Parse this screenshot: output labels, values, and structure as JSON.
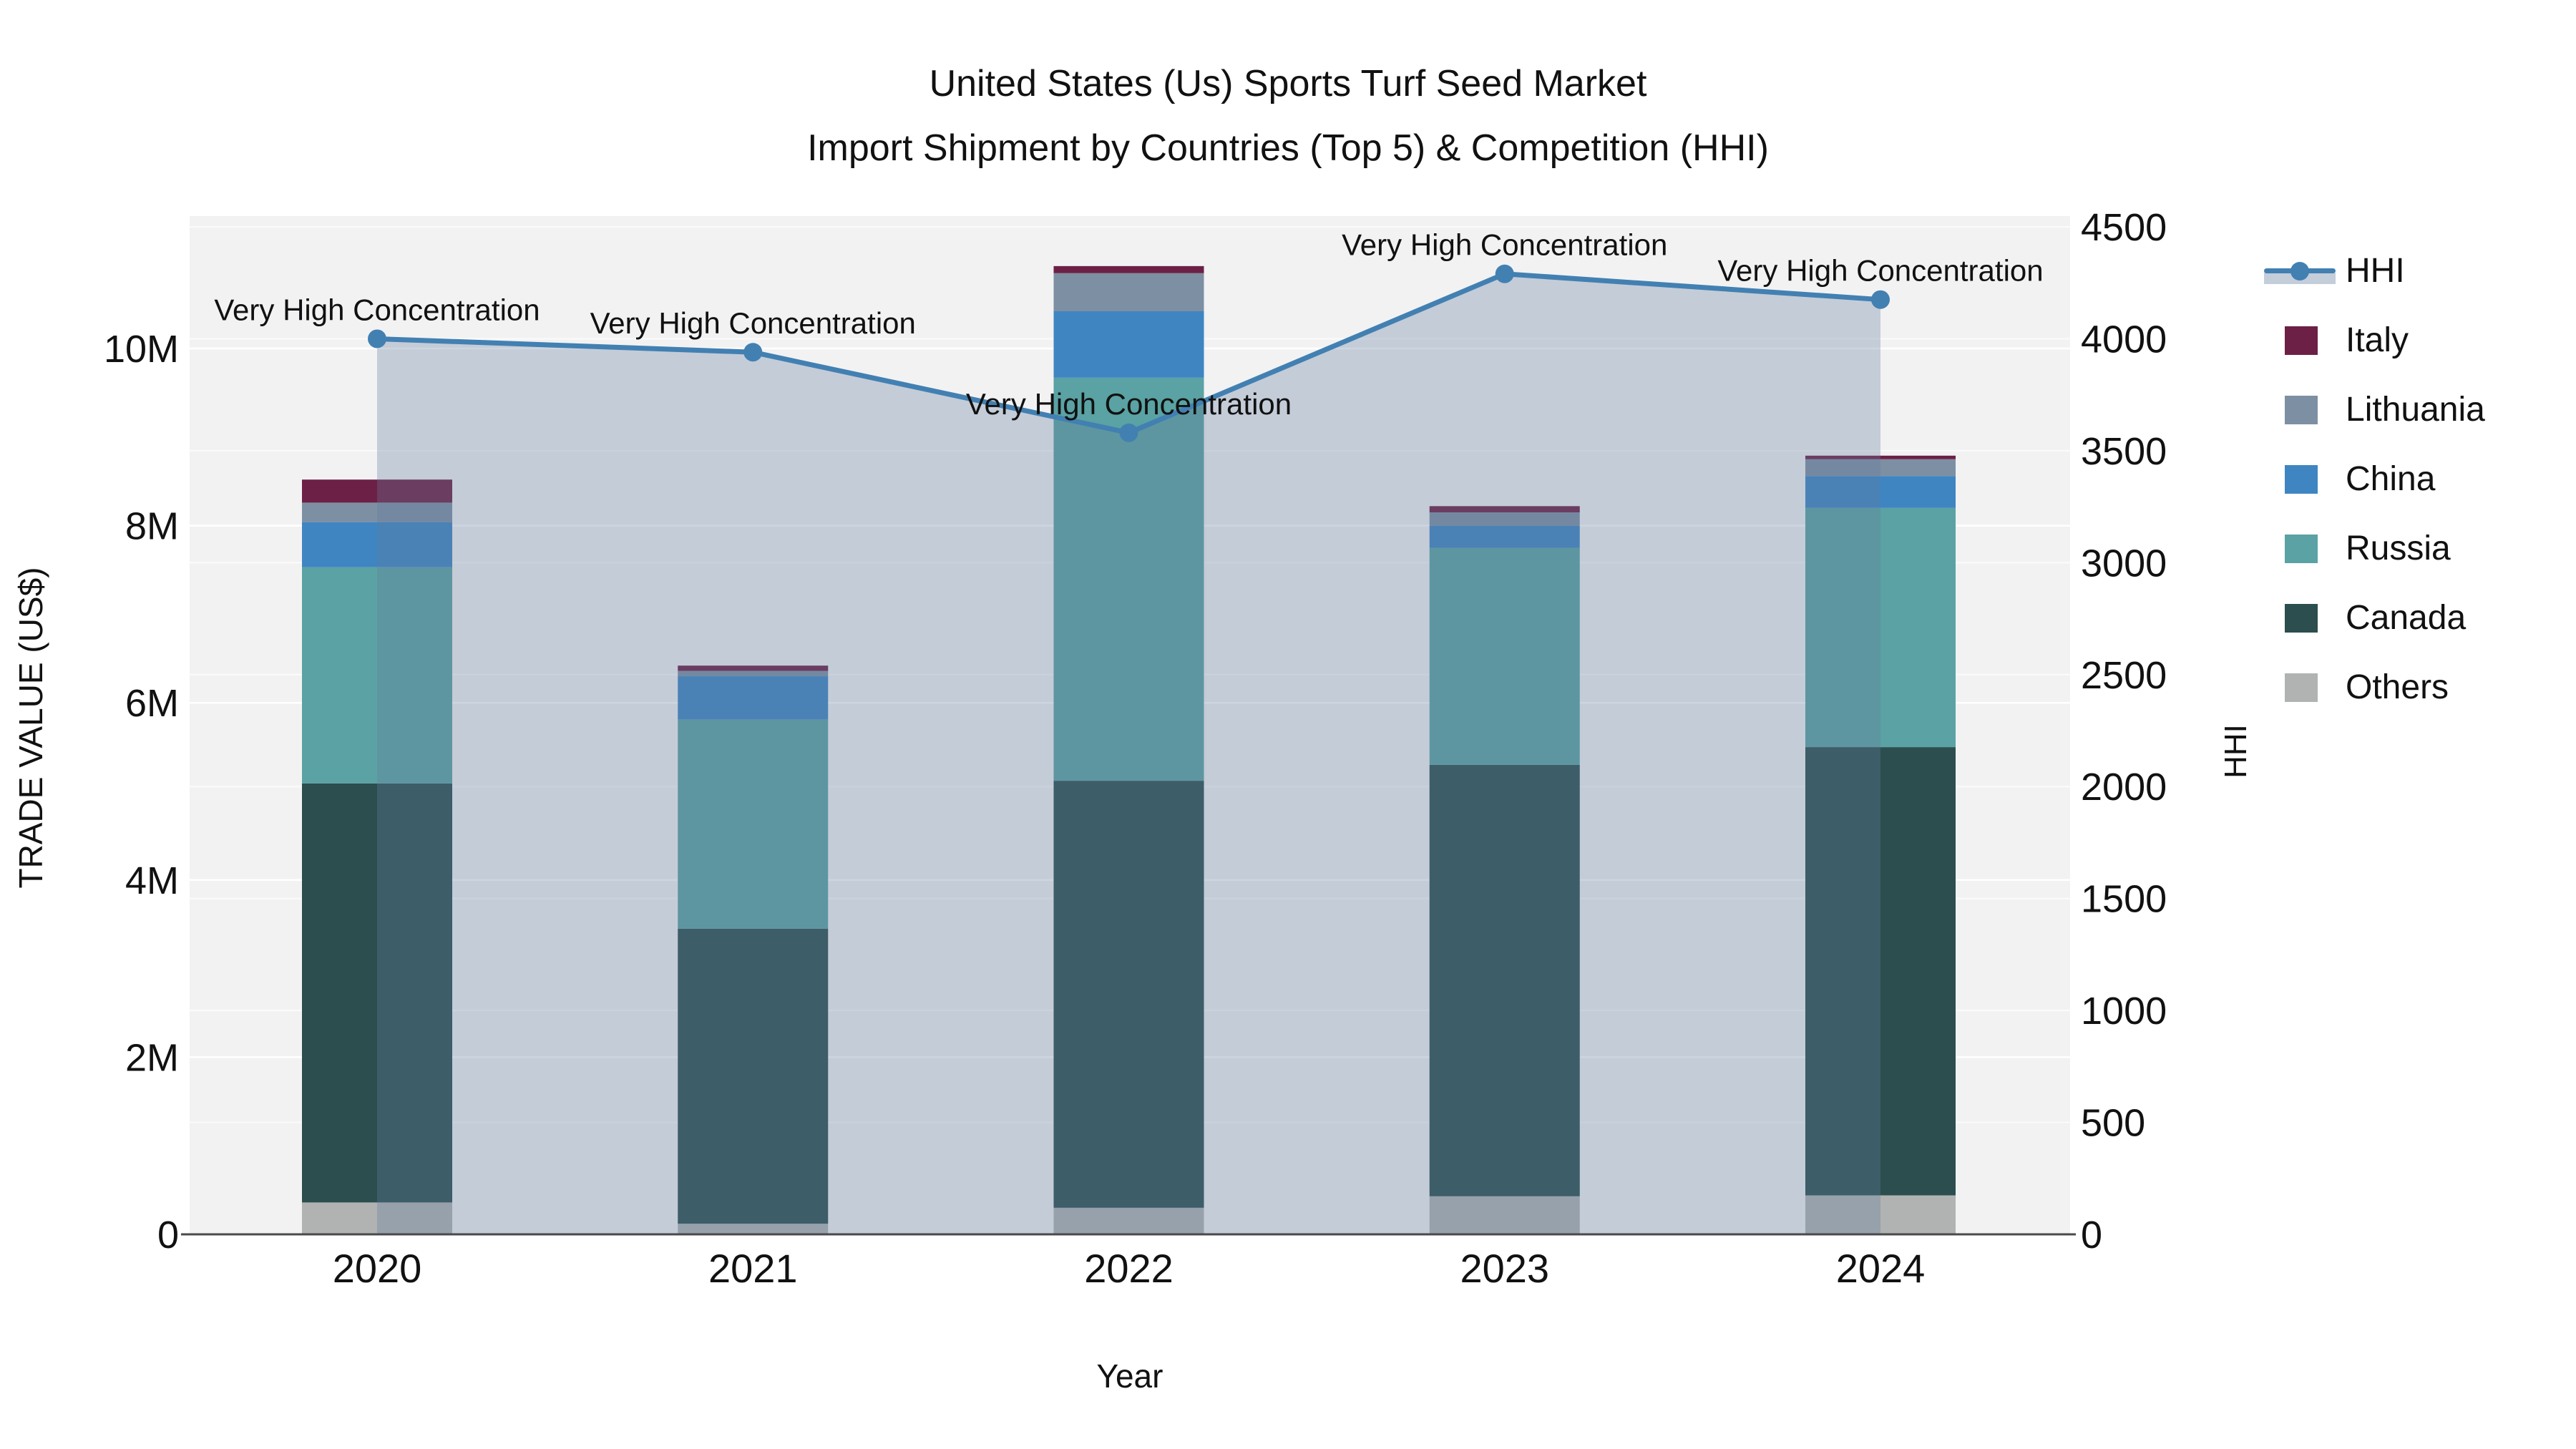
{
  "title": {
    "line1": "United States (Us) Sports Turf Seed Market",
    "line2": "Import Shipment by Countries (Top 5) & Competition (HHI)"
  },
  "axes": {
    "x_title": "Year",
    "y_left_title": "TRADE VALUE (US$)",
    "y_right_title": "HHI",
    "y_left_ticks": [
      {
        "value": 0,
        "label": "0"
      },
      {
        "value": 2000000,
        "label": "2M"
      },
      {
        "value": 4000000,
        "label": "4M"
      },
      {
        "value": 6000000,
        "label": "6M"
      },
      {
        "value": 8000000,
        "label": "8M"
      },
      {
        "value": 10000000,
        "label": "10M"
      }
    ],
    "y_right_ticks": [
      {
        "value": 0,
        "label": "0"
      },
      {
        "value": 500,
        "label": "500"
      },
      {
        "value": 1000,
        "label": "1000"
      },
      {
        "value": 1500,
        "label": "1500"
      },
      {
        "value": 2000,
        "label": "2000"
      },
      {
        "value": 2500,
        "label": "2500"
      },
      {
        "value": 3000,
        "label": "3000"
      },
      {
        "value": 3500,
        "label": "3500"
      },
      {
        "value": 4000,
        "label": "4000"
      },
      {
        "value": 4500,
        "label": "4500"
      }
    ]
  },
  "legend": {
    "items": [
      {
        "label": "HHI",
        "type": "line",
        "color": "#4280b2"
      },
      {
        "label": "Italy",
        "type": "square",
        "color": "#6d2045"
      },
      {
        "label": "Lithuania",
        "type": "square",
        "color": "#7d8fa2"
      },
      {
        "label": "China",
        "type": "square",
        "color": "#3f85c2"
      },
      {
        "label": "Russia",
        "type": "square",
        "color": "#5aa2a3"
      },
      {
        "label": "Canada",
        "type": "square",
        "color": "#2c4e4e"
      },
      {
        "label": "Others",
        "type": "square",
        "color": "#b0b3b1"
      }
    ]
  },
  "chart_data": {
    "type": "bar+line",
    "categories": [
      "2020",
      "2021",
      "2022",
      "2023",
      "2024"
    ],
    "bar_unit": "US$",
    "stack_order_note": "series listed bottom-to-top of the stack",
    "series": [
      {
        "name": "Others",
        "color": "#b0b3b1",
        "values": [
          360000,
          120000,
          300000,
          430000,
          440000
        ]
      },
      {
        "name": "Canada",
        "color": "#2c4e4e",
        "values": [
          4730000,
          3330000,
          4820000,
          4870000,
          5060000
        ]
      },
      {
        "name": "Russia",
        "color": "#5aa2a3",
        "values": [
          2440000,
          2360000,
          4550000,
          2450000,
          2700000
        ]
      },
      {
        "name": "China",
        "color": "#3f85c2",
        "values": [
          510000,
          490000,
          750000,
          250000,
          360000
        ]
      },
      {
        "name": "Lithuania",
        "color": "#7d8fa2",
        "values": [
          220000,
          60000,
          430000,
          150000,
          190000
        ]
      },
      {
        "name": "Italy",
        "color": "#6d2045",
        "values": [
          260000,
          60000,
          80000,
          70000,
          40000
        ]
      }
    ],
    "line_series": {
      "name": "HHI",
      "color": "#4280b2",
      "area_fill_color": "rgba(100,124,158,0.32)",
      "values": [
        4000,
        3940,
        3580,
        4290,
        4175
      ]
    },
    "annotation_text": "Very High Concentration",
    "xlabel": "Year",
    "ylabel_left": "TRADE VALUE (US$)",
    "ylabel_right": "HHI",
    "ylim_left": [
      0,
      11490000
    ],
    "ylim_right": [
      0,
      4548
    ],
    "grid": true,
    "legend_position": "right",
    "plot_background": "#f2f2f3",
    "gridline_color": "#ffffff"
  }
}
